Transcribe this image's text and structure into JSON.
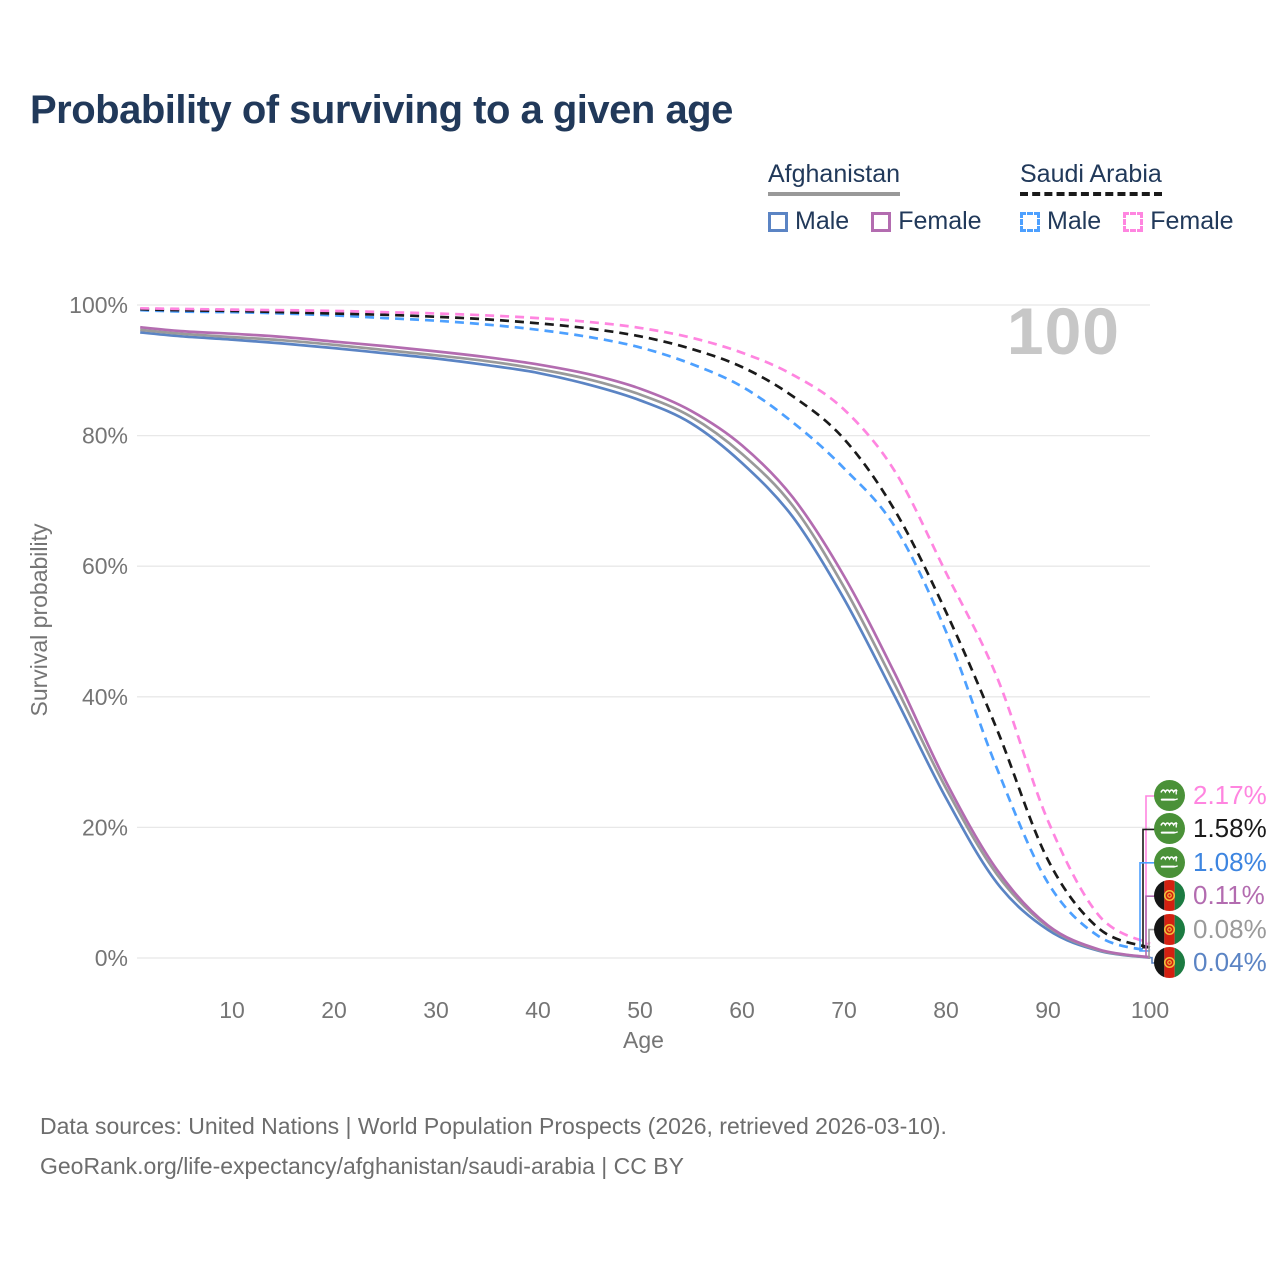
{
  "title": "Probability of surviving to a given age",
  "watermark": "100",
  "legend": {
    "groups": [
      {
        "name": "Afghanistan",
        "underline_color": "#999999",
        "underline_style": "solid",
        "items": [
          {
            "label": "Male",
            "color": "#5b84c4",
            "dashed": false
          },
          {
            "label": "Female",
            "color": "#b36cb0",
            "dashed": false
          }
        ]
      },
      {
        "name": "Saudi Arabia",
        "underline_color": "#1a1a1a",
        "underline_style": "dashed",
        "items": [
          {
            "label": "Male",
            "color": "#4da0ff",
            "dashed": true
          },
          {
            "label": "Female",
            "color": "#ff85e0",
            "dashed": true
          }
        ]
      }
    ]
  },
  "chart_data": {
    "type": "line",
    "title": "Probability of surviving to a given age",
    "xlabel": "Age",
    "ylabel": "Survival probability",
    "xlim": [
      1,
      100
    ],
    "ylim": [
      0,
      100
    ],
    "x_ticks": [
      10,
      20,
      30,
      40,
      50,
      60,
      70,
      80,
      90,
      100
    ],
    "y_ticks": [
      0,
      20,
      40,
      60,
      80,
      100
    ],
    "y_tick_labels": [
      "0%",
      "20%",
      "40%",
      "60%",
      "80%",
      "100%"
    ],
    "grid": "horizontal",
    "legend_position": "top-right",
    "x": [
      1,
      5,
      10,
      15,
      20,
      25,
      30,
      35,
      40,
      45,
      50,
      55,
      60,
      65,
      70,
      75,
      80,
      85,
      90,
      95,
      100
    ],
    "series": [
      {
        "id": "afghanistan-male",
        "country": "Afghanistan",
        "sex": "Male",
        "color": "#5b84c4",
        "dashed": false,
        "values": [
          95.8,
          95.2,
          94.7,
          94.1,
          93.4,
          92.6,
          91.8,
          90.8,
          89.6,
          87.8,
          85.4,
          81.9,
          75.8,
          67.5,
          55.0,
          40.0,
          24.5,
          11.5,
          4.3,
          1.1,
          0.04
        ],
        "end_label": "0.04%"
      },
      {
        "id": "afghanistan-total",
        "country": "Afghanistan",
        "sex": "Both",
        "color": "#9a9a9a",
        "dashed": false,
        "values": [
          96.2,
          95.6,
          95.1,
          94.6,
          93.9,
          93.1,
          92.3,
          91.4,
          90.2,
          88.6,
          86.3,
          82.9,
          77.2,
          69.2,
          56.8,
          41.8,
          26.0,
          12.8,
          4.8,
          1.2,
          0.08
        ],
        "end_label": "0.08%"
      },
      {
        "id": "afghanistan-female",
        "country": "Afghanistan",
        "sex": "Female",
        "color": "#b36cb0",
        "dashed": false,
        "values": [
          96.6,
          96.0,
          95.6,
          95.1,
          94.4,
          93.7,
          92.9,
          92.0,
          90.9,
          89.4,
          87.2,
          83.8,
          78.5,
          70.5,
          58.5,
          43.5,
          27.0,
          13.5,
          5.0,
          1.3,
          0.11
        ],
        "end_label": "0.11%"
      },
      {
        "id": "saudi-arabia-male",
        "country": "Saudi Arabia",
        "sex": "Male",
        "color": "#4da0ff",
        "dashed": true,
        "values": [
          99.2,
          99.0,
          98.9,
          98.7,
          98.4,
          98.0,
          97.6,
          97.0,
          96.2,
          95.1,
          93.5,
          91.0,
          87.5,
          82.0,
          75.0,
          66.0,
          50.0,
          29.0,
          11.5,
          3.3,
          1.08
        ],
        "end_label": "1.08%"
      },
      {
        "id": "saudi-arabia-total",
        "country": "Saudi Arabia",
        "sex": "Both",
        "color": "#1a1a1a",
        "dashed": true,
        "values": [
          99.35,
          99.2,
          99.1,
          98.9,
          98.7,
          98.5,
          98.2,
          97.8,
          97.2,
          96.4,
          95.2,
          93.3,
          90.5,
          86.0,
          79.5,
          68.5,
          53.0,
          35.0,
          15.0,
          4.5,
          1.58
        ],
        "end_label": "1.58%"
      },
      {
        "id": "saudi-arabia-female",
        "country": "Saudi Arabia",
        "sex": "Female",
        "color": "#ff85e0",
        "dashed": true,
        "values": [
          99.5,
          99.4,
          99.3,
          99.2,
          99.1,
          98.9,
          98.7,
          98.4,
          98.0,
          97.4,
          96.5,
          95.0,
          92.7,
          89.3,
          84.0,
          74.5,
          59.0,
          43.0,
          21.0,
          6.5,
          2.17
        ],
        "end_label": "2.17%"
      }
    ],
    "end_labels": [
      {
        "value": "2.17%",
        "color": "#ff85e0",
        "flag": "saudi-arabia",
        "series": "saudi-arabia-female"
      },
      {
        "value": "1.58%",
        "color": "#1a1a1a",
        "flag": "saudi-arabia",
        "series": "saudi-arabia-total"
      },
      {
        "value": "1.08%",
        "color": "#3d85e0",
        "flag": "saudi-arabia",
        "series": "saudi-arabia-male"
      },
      {
        "value": "0.11%",
        "color": "#b36cb0",
        "flag": "afghanistan",
        "series": "afghanistan-female"
      },
      {
        "value": "0.08%",
        "color": "#9a9a9a",
        "flag": "afghanistan",
        "series": "afghanistan-total"
      },
      {
        "value": "0.04%",
        "color": "#5b84c4",
        "flag": "afghanistan",
        "series": "afghanistan-male"
      }
    ],
    "annotation": "100"
  },
  "footer": {
    "line1": "Data sources: United Nations | World Population Prospects (2026, retrieved 2026-03-10).",
    "line2": "GeoRank.org/life-expectancy/afghanistan/saudi-arabia | CC BY"
  },
  "colors": {
    "title_text": "#21395a",
    "axis_text": "#757575",
    "gridline": "#e8e8e8",
    "watermark": "#c7c7c7",
    "footer_text": "#6d6d6d"
  }
}
